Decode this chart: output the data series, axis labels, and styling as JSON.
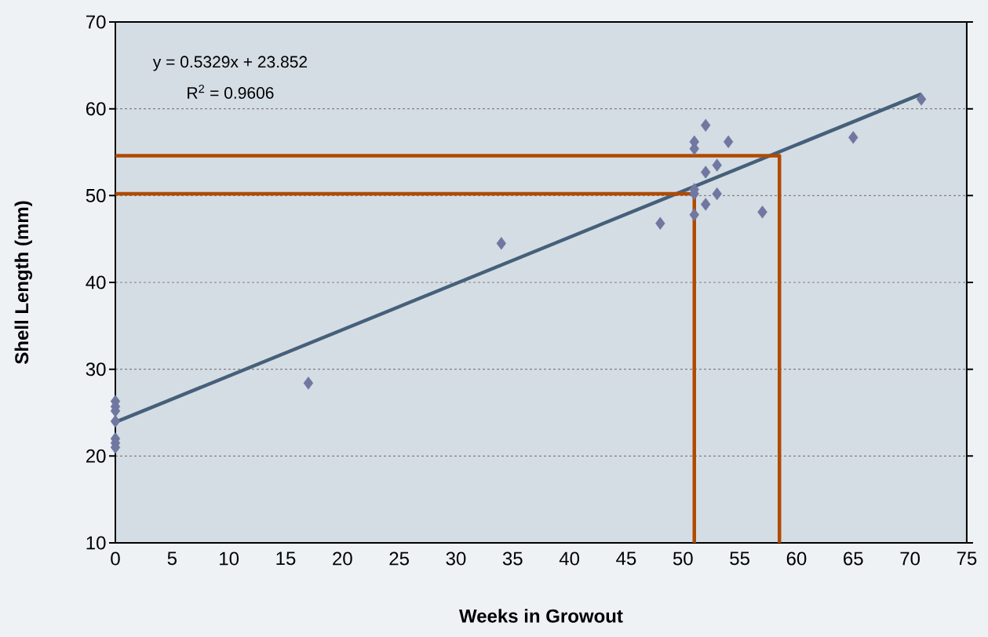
{
  "chart_data": {
    "type": "scatter",
    "xlabel": "Weeks in Growout",
    "ylabel": "Shell Length (mm)",
    "annotations": [
      "y = 0.5329x + 23.852",
      "R$^{2}$ = 0.9606"
    ],
    "series": [
      {
        "color": "#7077a1",
        "marker": "diamond",
        "x": [
          0,
          0,
          0,
          0,
          0,
          0,
          0,
          17,
          34,
          48,
          51,
          51,
          51,
          51,
          51,
          52,
          52,
          52,
          53,
          53,
          54,
          57,
          65,
          71
        ],
        "values": [
          26.3,
          25.7,
          25.2,
          24.0,
          22.0,
          21.5,
          21.0,
          28.4,
          44.5,
          46.8,
          56.2,
          55.4,
          50.7,
          47.8,
          50.2,
          58.1,
          52.7,
          49.0,
          53.5,
          50.2,
          56.2,
          48.1,
          56.7,
          61.1
        ]
      },
      {
        "type": "line",
        "color": "#46607a",
        "marker": "none",
        "x": [
          0,
          71
        ],
        "values": [
          23.9,
          61.7
        ]
      },
      {
        "type": "line",
        "color": "#b04a00",
        "marker": "none",
        "x": [
          0,
          51,
          51
        ],
        "values": [
          50.2,
          50.2,
          10
        ]
      },
      {
        "type": "line",
        "color": "#b04a00",
        "marker": "none",
        "x": [
          0,
          58.5,
          58.5
        ],
        "values": [
          54.6,
          54.6,
          10
        ]
      }
    ],
    "xlim": [
      0,
      75
    ],
    "xticks": [
      0,
      5,
      10,
      15,
      20,
      25,
      30,
      35,
      40,
      45,
      50,
      55,
      60,
      65,
      70,
      75
    ],
    "ylim": [
      10,
      70
    ],
    "yticks": [
      10,
      20,
      30,
      40,
      50,
      60,
      70
    ],
    "grid": "y",
    "line_style": "solid"
  }
}
